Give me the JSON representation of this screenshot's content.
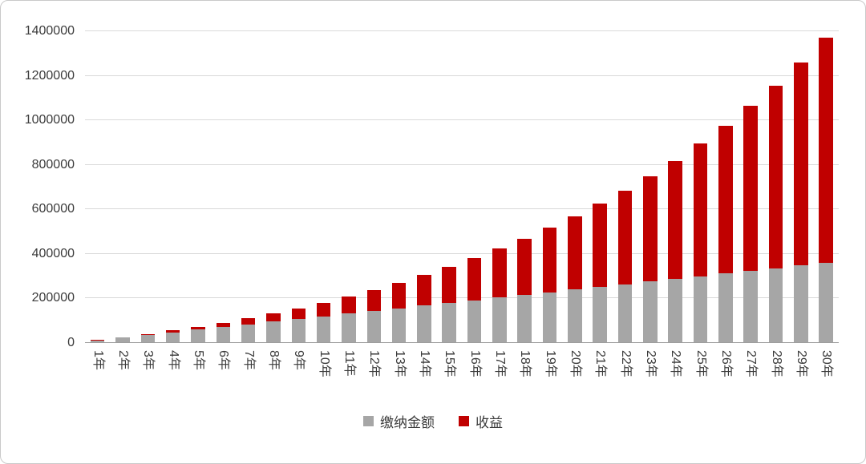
{
  "chart_data": {
    "type": "bar",
    "stacked": true,
    "title": "",
    "xlabel": "",
    "ylabel": "",
    "grid": true,
    "legend_position": "bottom",
    "ylim": [
      0,
      1400000
    ],
    "yticks": [
      0,
      200000,
      400000,
      600000,
      800000,
      1000000,
      1200000,
      1400000
    ],
    "categories": [
      "1年",
      "2年",
      "3年",
      "4年",
      "5年",
      "6年",
      "7年",
      "8年",
      "9年",
      "10年",
      "11年",
      "12年",
      "13年",
      "14年",
      "15年",
      "16年",
      "17年",
      "18年",
      "19年",
      "20年",
      "21年",
      "22年",
      "23年",
      "24年",
      "25年",
      "26年",
      "27年",
      "28年",
      "29年",
      "30年"
    ],
    "series": [
      {
        "key": "paid",
        "name": "缴纳金额",
        "color": "#a6a6a6",
        "values": [
          12000,
          24000,
          36000,
          48000,
          60000,
          72000,
          84000,
          96000,
          108000,
          120000,
          132000,
          144000,
          156000,
          168000,
          180000,
          192000,
          204000,
          216000,
          228000,
          240000,
          252000,
          264000,
          276000,
          288000,
          300000,
          312000,
          324000,
          336000,
          348000,
          360000
        ]
      },
      {
        "key": "gain",
        "name": "收益",
        "color": "#c00000",
        "values": [
          1000,
          3000,
          5000,
          8000,
          13000,
          19000,
          27000,
          37000,
          48000,
          61000,
          77000,
          95000,
          115000,
          137000,
          161000,
          189000,
          220000,
          252000,
          289000,
          329000,
          374000,
          421000,
          473000,
          530000,
          596000,
          664000,
          742000,
          821000,
          912000,
          1010000
        ]
      }
    ],
    "axis_color": "#9e9e9e",
    "gridline_color": "#d9d9d9",
    "text_color": "#3b3b3b"
  }
}
